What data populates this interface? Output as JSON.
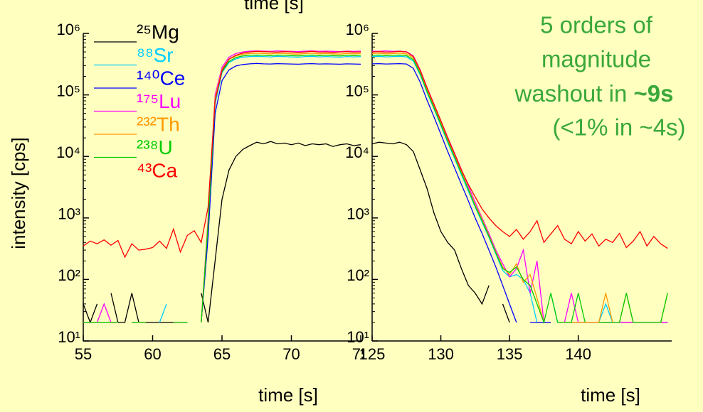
{
  "chart_data": [
    {
      "type": "line",
      "title": "time [s]",
      "x_label": "time [s]",
      "y_label": "intensity [cps]",
      "yscale": "log",
      "xlim": [
        55,
        75
      ],
      "xticks": [
        55,
        60,
        65,
        70,
        75
      ],
      "ylim": [
        10,
        1000000
      ],
      "yticks": [
        {
          "value": 10,
          "label": "10¹"
        },
        {
          "value": 100,
          "label": "10²"
        },
        {
          "value": 1000,
          "label": "10³"
        },
        {
          "value": 10000,
          "label": "10⁴"
        },
        {
          "value": 100000,
          "label": "10⁵"
        },
        {
          "value": 1000000,
          "label": "10⁶"
        }
      ],
      "x": [
        55,
        55.5,
        56,
        56.5,
        57,
        57.5,
        58,
        58.5,
        59,
        59.5,
        60,
        60.5,
        61,
        61.5,
        62,
        62.5,
        63,
        63.5,
        64,
        64.5,
        65,
        65.5,
        66,
        66.5,
        67,
        67.5,
        68,
        68.5,
        69,
        69.5,
        70,
        70.5,
        71,
        71.5,
        72,
        72.5,
        73,
        73.5,
        74,
        74.5,
        75
      ],
      "series": [
        {
          "name": "²⁵Mg",
          "color": "#000000",
          "values": [
            40,
            20,
            40,
            null,
            60,
            20,
            20,
            60,
            20,
            20,
            20,
            20,
            20,
            20,
            20,
            20,
            null,
            60,
            20,
            200,
            2000,
            6000,
            10000,
            13000,
            15000,
            17000,
            16000,
            17500,
            16000,
            16500,
            15500,
            16500,
            15000,
            16000,
            15500,
            16000,
            14500,
            15500,
            16000,
            15000,
            15500
          ]
        },
        {
          "name": "⁸⁸Sr",
          "color": "#00ccff",
          "values": [
            20,
            20,
            20,
            20,
            20,
            20,
            null,
            20,
            20,
            20,
            null,
            20,
            40,
            null,
            20,
            20,
            null,
            20,
            700,
            70000,
            230000,
            335000,
            385000,
            410000,
            420000,
            425000,
            420000,
            415000,
            425000,
            420000,
            415000,
            410000,
            420000,
            425000,
            415000,
            420000,
            415000,
            410000,
            420000,
            415000,
            420000
          ]
        },
        {
          "name": "¹⁴⁰Ce",
          "color": "#0000ff",
          "values": [
            20,
            20,
            20,
            20,
            20,
            20,
            null,
            20,
            20,
            20,
            null,
            20,
            null,
            20,
            20,
            20,
            null,
            20,
            500,
            50000,
            170000,
            255000,
            295000,
            312000,
            320000,
            325000,
            320000,
            318000,
            322000,
            320000,
            318000,
            315000,
            320000,
            322000,
            318000,
            320000,
            318000,
            315000,
            320000,
            318000,
            315000
          ]
        },
        {
          "name": "¹⁷⁵Lu",
          "color": "#ff00ff",
          "values": [
            20,
            20,
            20,
            40,
            20,
            20,
            null,
            20,
            20,
            20,
            null,
            20,
            null,
            20,
            20,
            20,
            null,
            20,
            1000,
            100000,
            280000,
            410000,
            470000,
            500000,
            515000,
            520000,
            515000,
            510000,
            520000,
            515000,
            510000,
            505000,
            515000,
            520000,
            510000,
            515000,
            510000,
            505000,
            515000,
            510000,
            515000
          ]
        },
        {
          "name": "²³²Th",
          "color": "#ff9900",
          "values": [
            20,
            20,
            20,
            20,
            20,
            20,
            null,
            20,
            20,
            20,
            null,
            20,
            null,
            20,
            20,
            20,
            null,
            20,
            900,
            90000,
            260000,
            380000,
            430000,
            460000,
            470000,
            475000,
            470000,
            465000,
            475000,
            470000,
            465000,
            460000,
            470000,
            475000,
            465000,
            470000,
            465000,
            460000,
            470000,
            465000,
            470000
          ]
        },
        {
          "name": "²³⁸U",
          "color": "#00cc00",
          "values": [
            20,
            20,
            20,
            20,
            20,
            20,
            null,
            20,
            20,
            20,
            null,
            20,
            null,
            20,
            20,
            20,
            null,
            20,
            800,
            80000,
            240000,
            350000,
            405000,
            430000,
            440000,
            445000,
            440000,
            435000,
            445000,
            440000,
            435000,
            430000,
            440000,
            445000,
            435000,
            440000,
            435000,
            430000,
            440000,
            435000,
            440000
          ]
        },
        {
          "name": "⁴³Ca",
          "color": "#ff0000",
          "values": [
            350,
            420,
            380,
            440,
            360,
            430,
            230,
            380,
            300,
            310,
            330,
            420,
            320,
            660,
            280,
            520,
            620,
            400,
            1500,
            80000,
            250000,
            380000,
            440000,
            480000,
            500000,
            510000,
            505000,
            500000,
            495000,
            505000,
            500000,
            490000,
            500000,
            510000,
            495000,
            500000,
            490000,
            500000,
            505000,
            495000,
            500000
          ]
        }
      ]
    },
    {
      "type": "line",
      "x_label": "time [s]",
      "yscale": "log",
      "xlim": [
        125,
        146.8
      ],
      "xticks": [
        125,
        130,
        135,
        140
      ],
      "ylim": [
        10,
        1000000
      ],
      "yticks": [
        {
          "value": 10,
          "label": "10¹"
        },
        {
          "value": 100,
          "label": "10²"
        },
        {
          "value": 1000,
          "label": "10³"
        },
        {
          "value": 10000,
          "label": "10⁴"
        },
        {
          "value": 100000,
          "label": "10⁵"
        },
        {
          "value": 1000000,
          "label": "10⁶"
        }
      ],
      "annotation": [
        "5 orders of",
        "magnitude",
        "washout in ",
        "~9s",
        "(<1% in ~4s)"
      ],
      "x": [
        125,
        125.5,
        126,
        126.5,
        127,
        127.5,
        128,
        128.5,
        129,
        129.5,
        130,
        130.5,
        131,
        131.5,
        132,
        132.5,
        133,
        133.5,
        134,
        134.5,
        135,
        135.5,
        136,
        136.5,
        137,
        137.5,
        138,
        138.5,
        139,
        139.5,
        140,
        140.5,
        141,
        141.5,
        142,
        142.5,
        143,
        143.5,
        144,
        144.5,
        145,
        145.5,
        146,
        146.5
      ],
      "series": [
        {
          "color": "#000000",
          "values": [
            16000,
            17000,
            16500,
            16000,
            17000,
            15500,
            12000,
            6000,
            3000,
            1200,
            600,
            400,
            300,
            150,
            80,
            60,
            40,
            80,
            null,
            40,
            20,
            null,
            null,
            null,
            20,
            20,
            20,
            null,
            null,
            null,
            20,
            20,
            20,
            20,
            20,
            20,
            20,
            20,
            20,
            20,
            20,
            20,
            20,
            20
          ]
        },
        {
          "color": "#00ccff",
          "values": [
            420000,
            425000,
            415000,
            420000,
            425000,
            415000,
            355000,
            210000,
            109000,
            59000,
            31500,
            16800,
            9200,
            5000,
            2700,
            1500,
            850,
            480,
            260,
            140,
            110,
            120,
            100,
            60,
            20,
            null,
            60,
            20,
            20,
            20,
            20,
            20,
            20,
            20,
            40,
            20,
            20,
            null,
            20,
            20,
            20,
            20,
            null,
            20
          ]
        },
        {
          "color": "#0000ff",
          "values": [
            320000,
            322000,
            318000,
            320000,
            322000,
            318000,
            270000,
            160000,
            82000,
            44000,
            23000,
            12000,
            6500,
            3500,
            1900,
            1000,
            560,
            300,
            160,
            80,
            40,
            20,
            null,
            20,
            20,
            20,
            20,
            null,
            20,
            20,
            20,
            20,
            20,
            null,
            20,
            20,
            20,
            20,
            20,
            20,
            20,
            20,
            20,
            20
          ]
        },
        {
          "color": "#ff00ff",
          "values": [
            515000,
            510000,
            520000,
            510000,
            515000,
            505000,
            430000,
            255000,
            132000,
            71000,
            38000,
            20500,
            11200,
            6100,
            3300,
            1800,
            1000,
            560,
            300,
            180,
            110,
            150,
            300,
            60,
            200,
            20,
            null,
            20,
            20,
            60,
            20,
            20,
            20,
            20,
            null,
            20,
            20,
            20,
            20,
            20,
            20,
            20,
            20,
            20
          ]
        },
        {
          "color": "#ff9900",
          "values": [
            470000,
            475000,
            465000,
            470000,
            475000,
            465000,
            400000,
            235000,
            122000,
            66000,
            35000,
            19000,
            10300,
            5600,
            3000,
            1650,
            950,
            520,
            280,
            160,
            120,
            180,
            90,
            120,
            50,
            20,
            null,
            20,
            20,
            20,
            20,
            20,
            20,
            20,
            60,
            20,
            20,
            60,
            20,
            20,
            20,
            20,
            20,
            60
          ]
        },
        {
          "color": "#00cc00",
          "values": [
            440000,
            445000,
            435000,
            440000,
            445000,
            435000,
            375000,
            220000,
            114000,
            62000,
            33000,
            17600,
            9700,
            5300,
            2900,
            1550,
            900,
            500,
            270,
            150,
            130,
            160,
            100,
            80,
            40,
            20,
            60,
            20,
            20,
            20,
            60,
            20,
            null,
            20,
            20,
            20,
            20,
            60,
            20,
            20,
            20,
            20,
            20,
            60
          ]
        },
        {
          "color": "#ff0000",
          "values": [
            500000,
            505000,
            495000,
            500000,
            510000,
            500000,
            420000,
            250000,
            130000,
            70000,
            38000,
            20000,
            11000,
            6000,
            3500,
            2200,
            1400,
            1000,
            750,
            600,
            500,
            650,
            450,
            600,
            900,
            400,
            550,
            750,
            450,
            380,
            600,
            420,
            550,
            350,
            450,
            400,
            560,
            330,
            420,
            600,
            350,
            500,
            380,
            320
          ]
        }
      ]
    }
  ]
}
